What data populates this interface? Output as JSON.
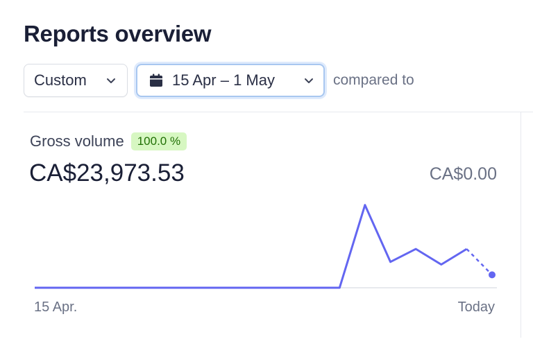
{
  "header": {
    "title": "Reports overview"
  },
  "filters": {
    "period_select": "Custom",
    "date_range": "15 Apr – 1 May",
    "compared_to": "compared to"
  },
  "metric": {
    "label": "Gross volume",
    "change_badge": "100.0 %",
    "value": "CA$23,973.53",
    "comparison_value": "CA$0.00"
  },
  "colors": {
    "series": "#6366f1",
    "badge_bg": "#d7f7c2",
    "badge_text": "#217005"
  },
  "icons": [
    "chevron-down-icon",
    "calendar-icon"
  ],
  "chart_data": {
    "type": "line",
    "x_start_label": "15 Apr.",
    "x_end_label": "Today",
    "series": [
      {
        "values": [
          0,
          0,
          0,
          0,
          0,
          0,
          0,
          0,
          0,
          0,
          0,
          0,
          0,
          6400,
          2000,
          3000,
          1800,
          3000,
          1000
        ],
        "projected_from_index": 17
      }
    ],
    "ylim": [
      0,
      6600
    ],
    "grid": false
  }
}
